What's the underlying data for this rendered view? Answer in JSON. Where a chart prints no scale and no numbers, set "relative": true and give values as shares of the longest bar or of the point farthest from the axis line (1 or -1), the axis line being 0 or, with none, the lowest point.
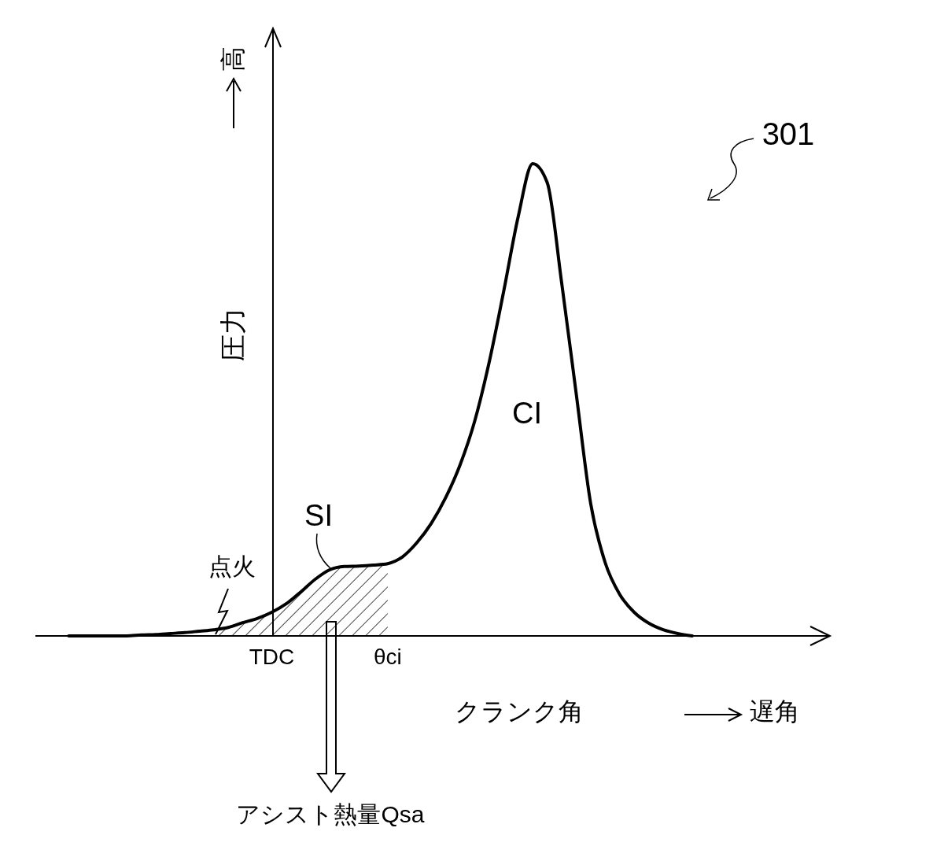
{
  "chart_data": {
    "type": "line",
    "relative": true,
    "ylabel": "圧力",
    "xlabel": "クランク角",
    "categories": [
      null,
      null,
      null,
      null,
      null,
      null,
      null,
      null,
      null,
      null,
      null,
      null,
      null,
      null,
      null,
      null,
      "TDC",
      null,
      null,
      null,
      null,
      null,
      null,
      null,
      "θci",
      null,
      null,
      null,
      null,
      null,
      null,
      null,
      null,
      null,
      null,
      null,
      null,
      null,
      null,
      null,
      null,
      null,
      null,
      null,
      null,
      null,
      null,
      null,
      null,
      null,
      null,
      null,
      null,
      null,
      null
    ],
    "series": [
      {
        "color": "#000000",
        "values": [
          null,
          null,
          0,
          0,
          0,
          0,
          0,
          0.002,
          0.003,
          0.005,
          0.007,
          0.01,
          0.013,
          0.018,
          0.028,
          0.037,
          0.05,
          0.068,
          0.093,
          0.12,
          0.14,
          0.147,
          0.148,
          0.15,
          0.153,
          0.167,
          0.197,
          0.238,
          0.293,
          0.363,
          0.455,
          0.58,
          0.73,
          0.888,
          1,
          0.96,
          0.747,
          0.513,
          0.28,
          0.155,
          0.088,
          0.05,
          0.027,
          0.013,
          0.005,
          0,
          null,
          null,
          null,
          null,
          null,
          null,
          null,
          null,
          null
        ]
      },
      {
        "type": "area",
        "color": "#000000",
        "values": [
          null,
          null,
          null,
          null,
          null,
          null,
          null,
          null,
          null,
          null,
          null,
          null,
          0.013,
          0.018,
          0.028,
          0.037,
          0.05,
          0.068,
          0.093,
          0.12,
          0.14,
          0.147,
          0.148,
          0.15,
          0.153,
          null,
          null,
          null,
          null,
          null,
          null,
          null,
          null,
          null,
          null,
          null,
          null,
          null,
          null,
          null,
          null,
          null,
          null,
          null,
          null,
          null,
          null,
          null,
          null,
          null,
          null,
          null,
          null,
          null,
          null
        ]
      }
    ],
    "annotations": [
      "301",
      "高",
      "SI",
      "CI",
      "点火",
      "遅角",
      "アシスト熱量Qsa"
    ]
  }
}
